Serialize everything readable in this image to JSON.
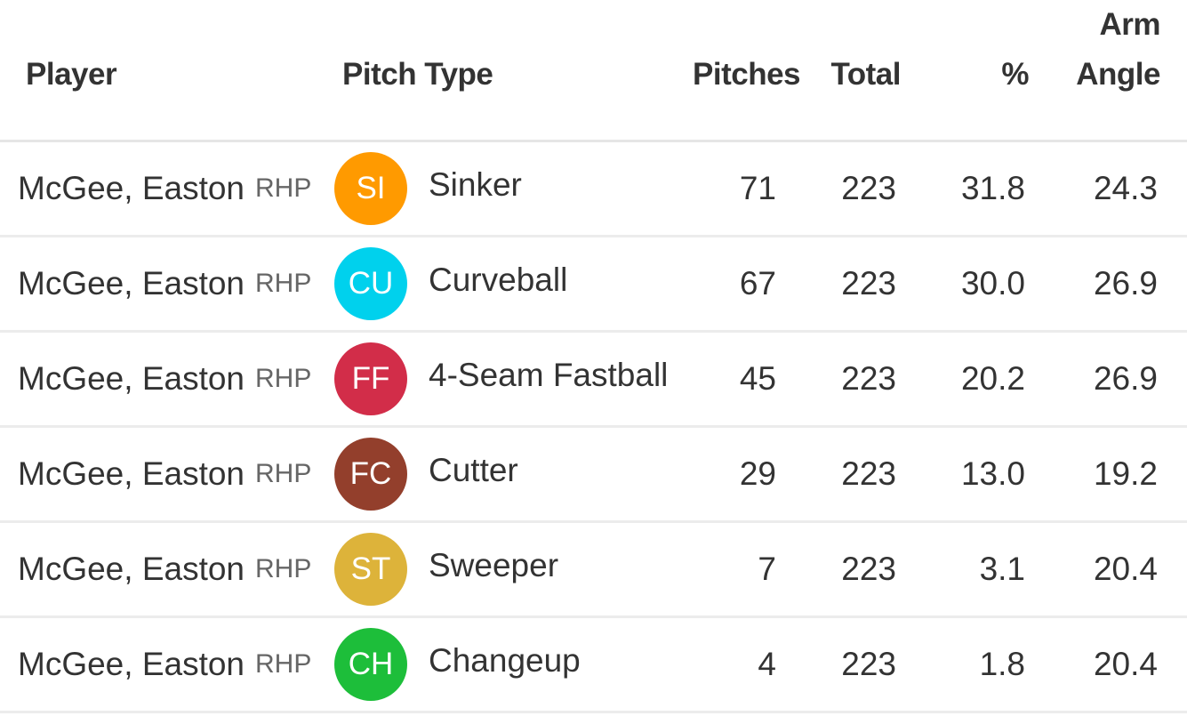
{
  "columns": {
    "player": "Player",
    "pitch_type": "Pitch Type",
    "pitches": "Pitches",
    "total": "Total",
    "pct": "%",
    "arm_angle_line1": "Arm",
    "arm_angle_line2": "Angle"
  },
  "rows": [
    {
      "player": "McGee, Easton",
      "hand": "RHP",
      "code": "SI",
      "color": "#FF9A00",
      "pitch": "Sinker",
      "pitches": "71",
      "total": "223",
      "pct": "31.8",
      "arm": "24.3"
    },
    {
      "player": "McGee, Easton",
      "hand": "RHP",
      "code": "CU",
      "color": "#00D1ED",
      "pitch": "Curveball",
      "pitches": "67",
      "total": "223",
      "pct": "30.0",
      "arm": "26.9"
    },
    {
      "player": "McGee, Easton",
      "hand": "RHP",
      "code": "FF",
      "color": "#D22D49",
      "pitch": "4-Seam Fastball",
      "pitches": "45",
      "total": "223",
      "pct": "20.2",
      "arm": "26.9"
    },
    {
      "player": "McGee, Easton",
      "hand": "RHP",
      "code": "FC",
      "color": "#933F2C",
      "pitch": "Cutter",
      "pitches": "29",
      "total": "223",
      "pct": "13.0",
      "arm": "19.2"
    },
    {
      "player": "McGee, Easton",
      "hand": "RHP",
      "code": "ST",
      "color": "#DDB33A",
      "pitch": "Sweeper",
      "pitches": "7",
      "total": "223",
      "pct": "3.1",
      "arm": "20.4"
    },
    {
      "player": "McGee, Easton",
      "hand": "RHP",
      "code": "CH",
      "color": "#1DBE3A",
      "pitch": "Changeup",
      "pitches": "4",
      "total": "223",
      "pct": "1.8",
      "arm": "20.4"
    }
  ]
}
